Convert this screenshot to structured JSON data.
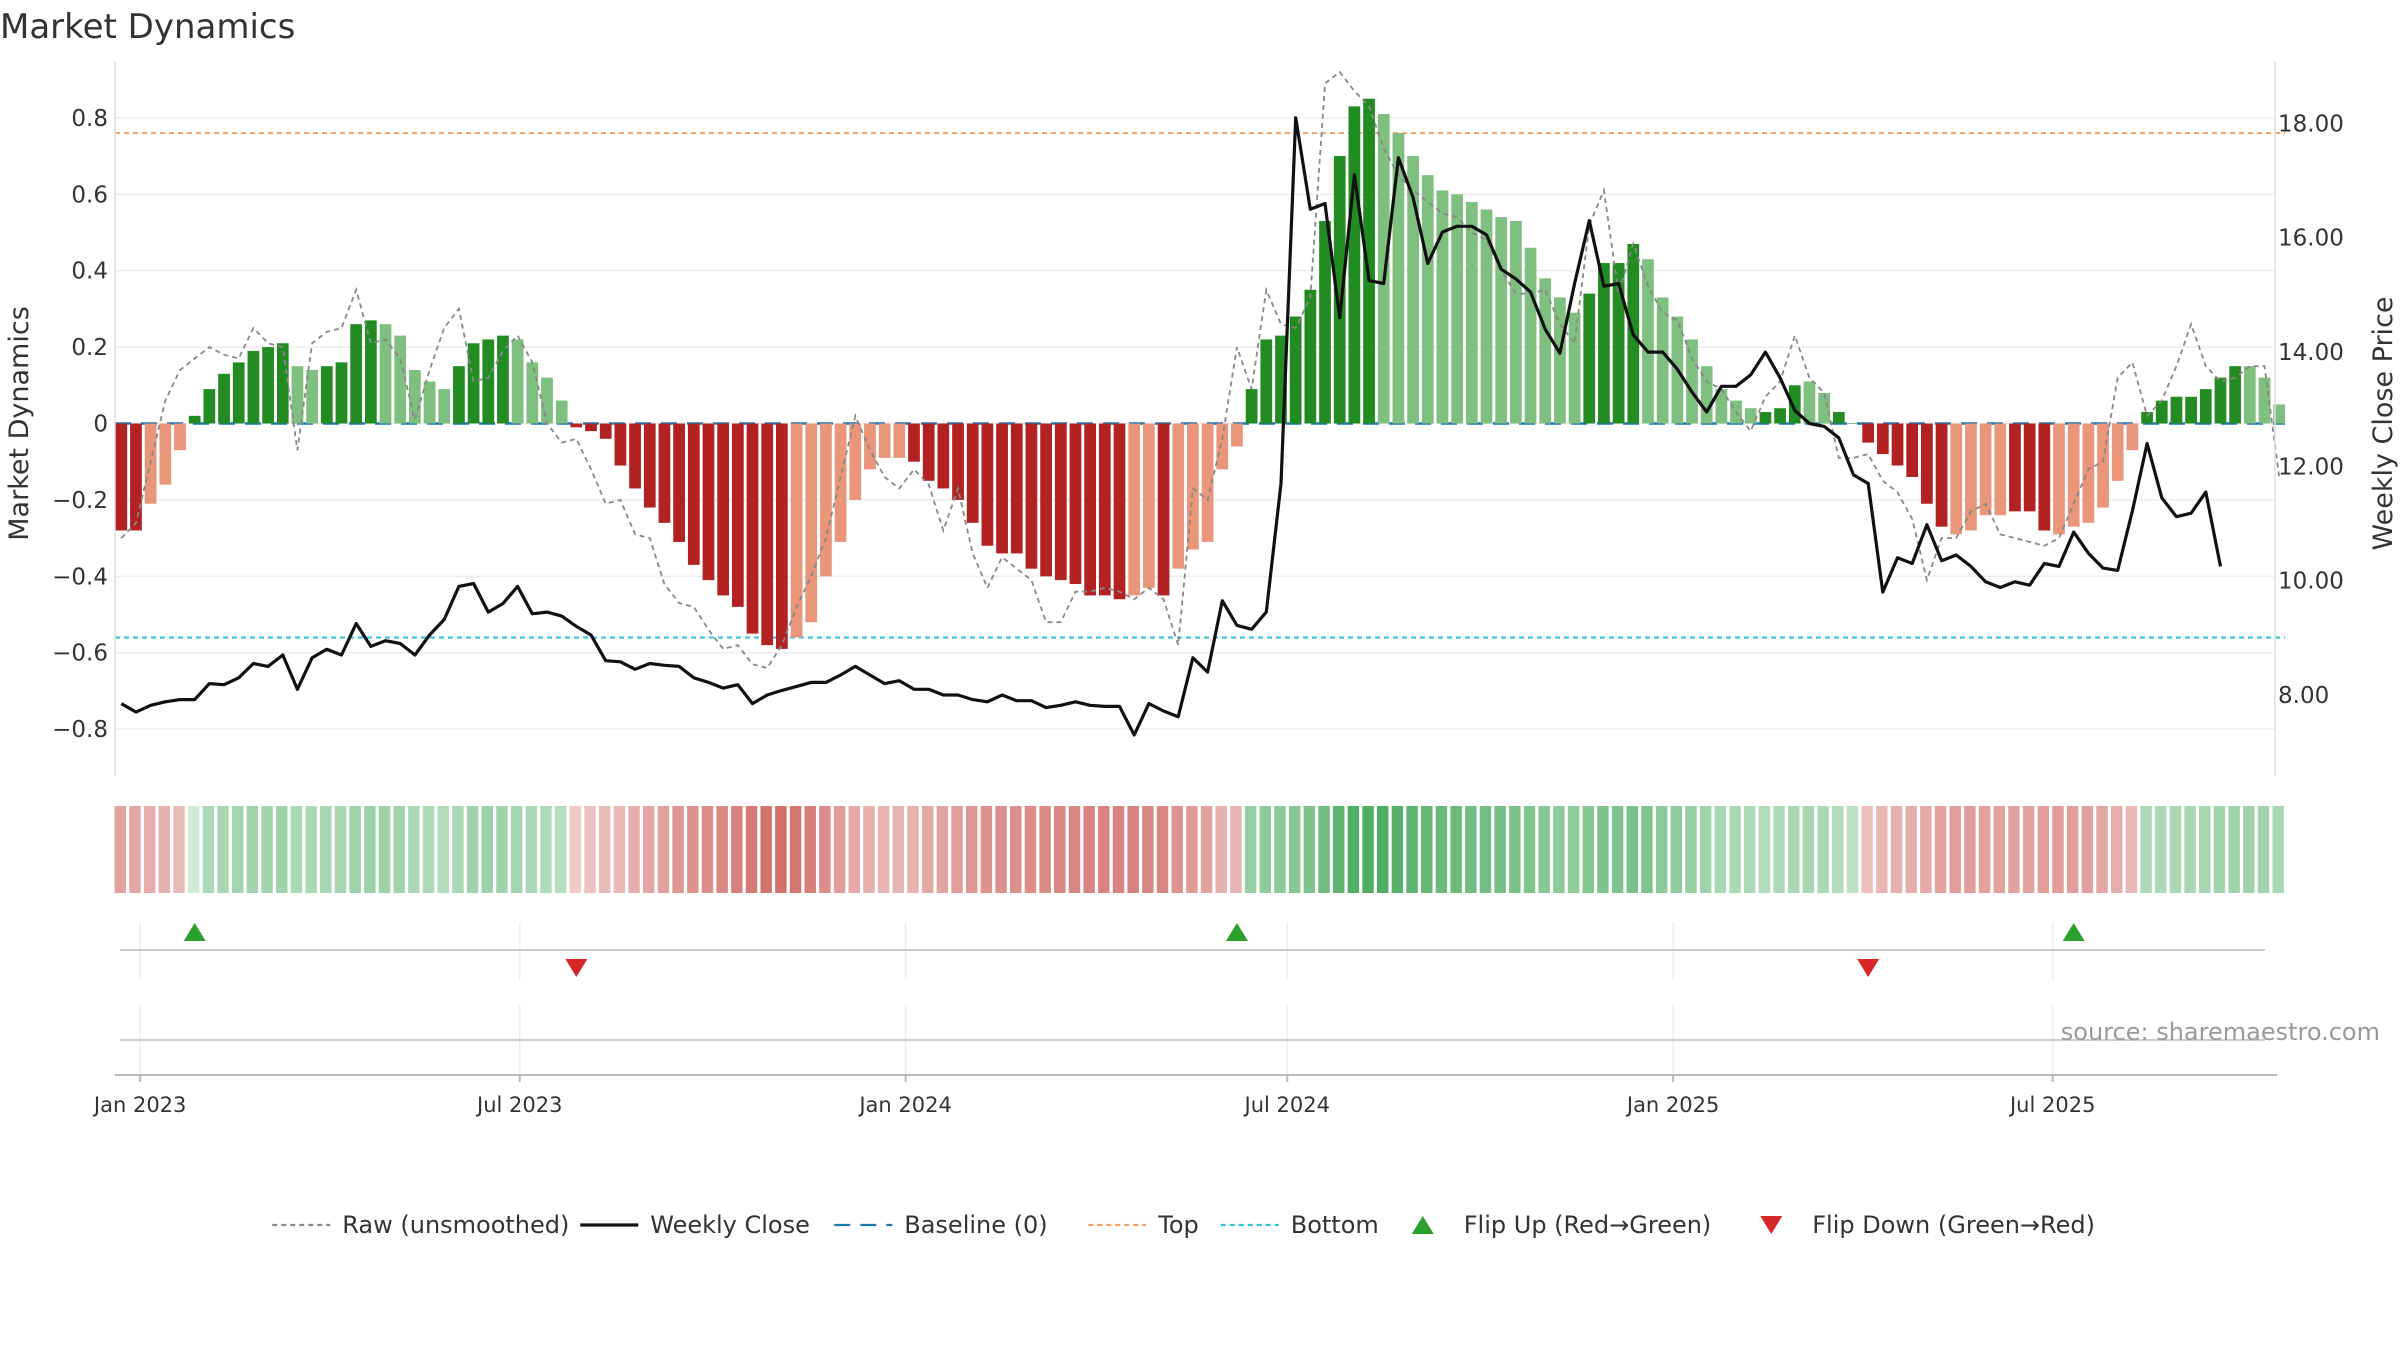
{
  "title": "Market Dynamics",
  "source_note": "source: sharemaestro.com",
  "colors": {
    "strong_green": "#228B22",
    "light_green": "#7FBF7F",
    "strong_red": "#B22222",
    "light_red": "#E9967A",
    "close_line": "#111111",
    "raw_line": "#888888",
    "baseline": "#1F77B4",
    "top_line": "#F4A261",
    "bottom_line": "#2EC4D6",
    "flip_up": "#2CA02C",
    "flip_down": "#D62728"
  },
  "chart_data": {
    "type": "bar",
    "title": "Market Dynamics",
    "ylabel": "Market Dynamics",
    "y2label": "Weekly Close Price",
    "ylim": [
      -0.92,
      0.92
    ],
    "y2lim": [
      6.6,
      18.9
    ],
    "xlim": [
      "2022-12-20",
      "2025-10-15"
    ],
    "yticks": [
      0.8,
      0.6,
      0.4,
      0.2,
      0,
      -0.2,
      -0.4,
      -0.6,
      -0.8
    ],
    "ytick_labels": [
      "0.8",
      "0.6",
      "0.4",
      "0.2",
      "0",
      "−0.2",
      "−0.4",
      "−0.6",
      "−0.8"
    ],
    "y2ticks": [
      18,
      16,
      14,
      12,
      10,
      8
    ],
    "y2tick_labels": [
      "18.00",
      "16.00",
      "14.00",
      "12.00",
      "10.00",
      "8.00"
    ],
    "xticks": [
      "2023-01-01",
      "2023-07-01",
      "2024-01-01",
      "2024-07-01",
      "2025-01-01",
      "2025-07-01"
    ],
    "xtick_labels": [
      "Jan 2023",
      "Jul 2023",
      "Jan 2024",
      "Jul 2024",
      "Jan 2025",
      "Jul 2025"
    ],
    "grid": true,
    "legend_position": "bottom-center",
    "top_level": 0.76,
    "bottom_level": -0.56,
    "baseline": 0,
    "start_week": "2022-12-23",
    "week_step_days": 7,
    "bar_values": [
      -0.28,
      -0.28,
      -0.21,
      -0.16,
      -0.07,
      0.02,
      0.09,
      0.13,
      0.16,
      0.19,
      0.2,
      0.21,
      0.15,
      0.14,
      0.15,
      0.16,
      0.26,
      0.27,
      0.26,
      0.23,
      0.14,
      0.11,
      0.09,
      0.15,
      0.21,
      0.22,
      0.23,
      0.22,
      0.16,
      0.12,
      0.06,
      -0.01,
      -0.02,
      -0.04,
      -0.11,
      -0.17,
      -0.22,
      -0.26,
      -0.31,
      -0.37,
      -0.41,
      -0.45,
      -0.48,
      -0.55,
      -0.58,
      -0.59,
      -0.56,
      -0.52,
      -0.4,
      -0.31,
      -0.2,
      -0.12,
      -0.09,
      -0.09,
      -0.1,
      -0.15,
      -0.17,
      -0.2,
      -0.26,
      -0.32,
      -0.34,
      -0.34,
      -0.38,
      -0.4,
      -0.41,
      -0.42,
      -0.45,
      -0.45,
      -0.46,
      -0.45,
      -0.43,
      -0.45,
      -0.38,
      -0.33,
      -0.31,
      -0.12,
      -0.06,
      0.09,
      0.22,
      0.23,
      0.28,
      0.35,
      0.53,
      0.7,
      0.83,
      0.85,
      0.81,
      0.76,
      0.7,
      0.65,
      0.61,
      0.6,
      0.58,
      0.56,
      0.54,
      0.53,
      0.46,
      0.38,
      0.33,
      0.29,
      0.34,
      0.42,
      0.42,
      0.47,
      0.43,
      0.33,
      0.28,
      0.22,
      0.15,
      0.09,
      0.06,
      0.04,
      0.03,
      0.04,
      0.1,
      0.11,
      0.08,
      0.03,
      0.0,
      -0.05,
      -0.08,
      -0.11,
      -0.14,
      -0.21,
      -0.27,
      -0.29,
      -0.28,
      -0.24,
      -0.24,
      -0.23,
      -0.23,
      -0.28,
      -0.29,
      -0.27,
      -0.26,
      -0.22,
      -0.15,
      -0.07,
      0.03,
      0.06,
      0.07,
      0.07,
      0.09,
      0.12,
      0.15,
      0.15,
      0.12,
      0.05
    ],
    "bar_strong": [
      1,
      1,
      0,
      0,
      0,
      1,
      1,
      1,
      1,
      1,
      1,
      1,
      0,
      0,
      1,
      1,
      1,
      1,
      0,
      0,
      0,
      0,
      0,
      1,
      1,
      1,
      1,
      0,
      0,
      0,
      0,
      1,
      1,
      1,
      1,
      1,
      1,
      1,
      1,
      1,
      1,
      1,
      1,
      1,
      1,
      1,
      0,
      0,
      0,
      0,
      0,
      0,
      0,
      0,
      1,
      1,
      1,
      1,
      1,
      1,
      1,
      1,
      1,
      1,
      1,
      1,
      1,
      1,
      1,
      0,
      0,
      1,
      0,
      0,
      0,
      0,
      0,
      1,
      1,
      1,
      1,
      1,
      1,
      1,
      1,
      1,
      0,
      0,
      0,
      0,
      0,
      0,
      0,
      0,
      0,
      0,
      0,
      0,
      0,
      0,
      1,
      1,
      1,
      1,
      0,
      0,
      0,
      0,
      0,
      0,
      0,
      0,
      1,
      1,
      1,
      0,
      0,
      1,
      1,
      1,
      1,
      1,
      1,
      1,
      1,
      0,
      0,
      0,
      0,
      1,
      1,
      1,
      0,
      0,
      0,
      0,
      0,
      0,
      1,
      1,
      1,
      1,
      1,
      1,
      1,
      0,
      0
    ],
    "raw_values": [
      -0.3,
      -0.26,
      -0.1,
      0.06,
      0.14,
      0.17,
      0.2,
      0.18,
      0.17,
      0.25,
      0.21,
      0.2,
      -0.07,
      0.21,
      0.24,
      0.25,
      0.35,
      0.21,
      0.22,
      0.17,
      0.01,
      0.14,
      0.25,
      0.3,
      0.11,
      0.12,
      0.19,
      0.23,
      0.16,
      0.0,
      -0.05,
      -0.04,
      -0.12,
      -0.21,
      -0.2,
      -0.29,
      -0.3,
      -0.42,
      -0.47,
      -0.48,
      -0.54,
      -0.59,
      -0.58,
      -0.63,
      -0.64,
      -0.58,
      -0.48,
      -0.4,
      -0.3,
      -0.14,
      0.02,
      -0.07,
      -0.14,
      -0.17,
      -0.12,
      -0.16,
      -0.28,
      -0.17,
      -0.34,
      -0.43,
      -0.35,
      -0.38,
      -0.41,
      -0.52,
      -0.52,
      -0.44,
      -0.44,
      -0.43,
      -0.44,
      -0.46,
      -0.43,
      -0.46,
      -0.58,
      -0.17,
      -0.2,
      -0.04,
      0.2,
      0.09,
      0.35,
      0.26,
      0.25,
      0.33,
      0.89,
      0.92,
      0.87,
      0.83,
      0.72,
      0.65,
      0.61,
      0.58,
      0.55,
      0.54,
      0.5,
      0.48,
      0.4,
      0.34,
      0.34,
      0.35,
      0.26,
      0.21,
      0.52,
      0.61,
      0.34,
      0.47,
      0.36,
      0.29,
      0.27,
      0.17,
      0.11,
      0.09,
      0.03,
      -0.02,
      0.07,
      0.11,
      0.23,
      0.12,
      0.08,
      -0.09,
      -0.09,
      -0.08,
      -0.15,
      -0.18,
      -0.25,
      -0.41,
      -0.3,
      -0.3,
      -0.23,
      -0.21,
      -0.29,
      -0.3,
      -0.31,
      -0.32,
      -0.3,
      -0.21,
      -0.12,
      -0.1,
      0.12,
      0.16,
      0.02,
      0.06,
      0.15,
      0.26,
      0.15,
      0.11,
      0.12,
      0.15,
      0.15,
      -0.14
    ],
    "close_values": [
      7.85,
      7.7,
      7.82,
      7.88,
      7.92,
      7.92,
      8.2,
      8.18,
      8.3,
      8.55,
      8.5,
      8.7,
      8.1,
      8.65,
      8.8,
      8.7,
      9.25,
      8.85,
      8.95,
      8.9,
      8.7,
      9.05,
      9.32,
      9.9,
      9.95,
      9.45,
      9.6,
      9.9,
      9.42,
      9.45,
      9.38,
      9.2,
      9.05,
      8.6,
      8.58,
      8.45,
      8.55,
      8.52,
      8.5,
      8.3,
      8.22,
      8.12,
      8.18,
      7.85,
      8.0,
      8.08,
      8.15,
      8.22,
      8.22,
      8.35,
      8.5,
      8.35,
      8.2,
      8.25,
      8.1,
      8.1,
      8.0,
      8.0,
      7.92,
      7.88,
      8.0,
      7.9,
      7.9,
      7.78,
      7.82,
      7.88,
      7.82,
      7.8,
      7.8,
      7.3,
      7.85,
      7.72,
      7.62,
      8.65,
      8.4,
      9.65,
      9.22,
      9.15,
      9.45,
      11.7,
      18.1,
      16.5,
      16.6,
      14.6,
      17.1,
      15.25,
      15.2,
      17.4,
      16.7,
      15.55,
      16.1,
      16.2,
      16.2,
      16.05,
      15.45,
      15.28,
      15.05,
      14.4,
      13.98,
      15.2,
      16.3,
      15.15,
      15.2,
      14.3,
      14.0,
      14.0,
      13.7,
      13.3,
      12.95,
      13.4,
      13.4,
      13.6,
      14.0,
      13.55,
      12.98,
      12.75,
      12.7,
      12.5,
      11.85,
      11.7,
      9.8,
      10.4,
      10.3,
      10.98,
      10.35,
      10.45,
      10.25,
      9.98,
      9.88,
      9.98,
      9.92,
      10.3,
      10.25,
      10.85,
      10.48,
      10.22,
      10.18,
      11.22,
      12.4,
      11.45,
      11.12,
      11.18,
      11.55,
      10.25
    ],
    "strength_values": [
      -0.4,
      -0.38,
      -0.32,
      -0.3,
      -0.22,
      0.05,
      0.3,
      0.32,
      0.35,
      0.38,
      0.36,
      0.38,
      0.3,
      0.3,
      0.32,
      0.34,
      0.4,
      0.42,
      0.4,
      0.38,
      0.3,
      0.28,
      0.26,
      0.3,
      0.38,
      0.4,
      0.38,
      0.35,
      0.3,
      0.28,
      0.24,
      -0.12,
      -0.18,
      -0.22,
      -0.26,
      -0.32,
      -0.38,
      -0.42,
      -0.48,
      -0.52,
      -0.55,
      -0.6,
      -0.64,
      -0.7,
      -0.74,
      -0.76,
      -0.72,
      -0.66,
      -0.55,
      -0.45,
      -0.35,
      -0.3,
      -0.28,
      -0.28,
      -0.3,
      -0.36,
      -0.4,
      -0.44,
      -0.48,
      -0.52,
      -0.54,
      -0.54,
      -0.56,
      -0.58,
      -0.6,
      -0.6,
      -0.62,
      -0.62,
      -0.62,
      -0.62,
      -0.6,
      -0.6,
      -0.52,
      -0.46,
      -0.4,
      -0.3,
      -0.28,
      0.45,
      0.5,
      0.52,
      0.55,
      0.6,
      0.7,
      0.82,
      0.9,
      0.92,
      0.9,
      0.86,
      0.82,
      0.78,
      0.74,
      0.72,
      0.7,
      0.68,
      0.66,
      0.64,
      0.6,
      0.55,
      0.52,
      0.5,
      0.55,
      0.6,
      0.6,
      0.62,
      0.6,
      0.52,
      0.48,
      0.44,
      0.38,
      0.34,
      0.3,
      0.28,
      0.26,
      0.28,
      0.32,
      0.33,
      0.3,
      0.26,
      0.2,
      -0.2,
      -0.25,
      -0.3,
      -0.32,
      -0.36,
      -0.42,
      -0.45,
      -0.45,
      -0.42,
      -0.42,
      -0.4,
      -0.4,
      -0.44,
      -0.45,
      -0.43,
      -0.42,
      -0.38,
      -0.32,
      -0.26,
      0.28,
      0.3,
      0.32,
      0.32,
      0.34,
      0.36,
      0.38,
      0.38,
      0.36,
      0.3
    ],
    "flip_up_dates": [
      "2023-01-27",
      "2024-06-07",
      "2025-07-11"
    ],
    "flip_down_dates": [
      "2023-07-28",
      "2025-04-04"
    ],
    "legend": [
      {
        "label": "Raw (unsmoothed)",
        "kind": "line-dotted",
        "color_key": "raw_line"
      },
      {
        "label": "Weekly Close",
        "kind": "line-solid",
        "color_key": "close_line"
      },
      {
        "label": "Baseline (0)",
        "kind": "line-dashed",
        "color_key": "baseline"
      },
      {
        "label": "Top",
        "kind": "line-dotted",
        "color_key": "top_line"
      },
      {
        "label": "Bottom",
        "kind": "line-dotted",
        "color_key": "bottom_line"
      },
      {
        "label": "Flip Up (Red→Green)",
        "kind": "marker-up",
        "color_key": "flip_up"
      },
      {
        "label": "Flip Down (Green→Red)",
        "kind": "marker-down",
        "color_key": "flip_down"
      }
    ]
  }
}
